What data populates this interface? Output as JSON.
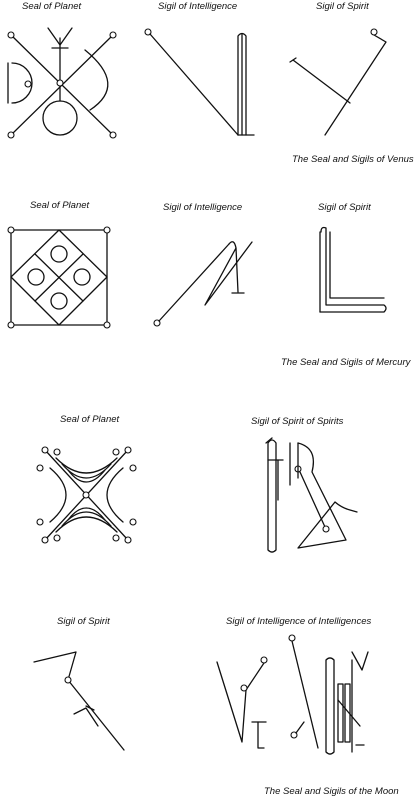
{
  "venus": {
    "seal_label": "Seal of Planet",
    "intel_label": "Sigil of Intelligence",
    "spirit_label": "Sigil of Spirit",
    "caption": "The Seal and Sigils of Venus"
  },
  "mercury": {
    "seal_label": "Seal of Planet",
    "intel_label": "Sigil of Intelligence",
    "spirit_label": "Sigil of Spirit",
    "caption": "The Seal and Sigils of Mercury"
  },
  "moon": {
    "seal_label": "Seal of Planet",
    "spirit_spirits_label": "Sigil of Spirit of Spirits",
    "spirit_label": "Sigil of Spirit",
    "intel_intel_label": "Sigil of Intelligence of Intelligences",
    "caption": "The Seal and Sigils of the Moon"
  }
}
